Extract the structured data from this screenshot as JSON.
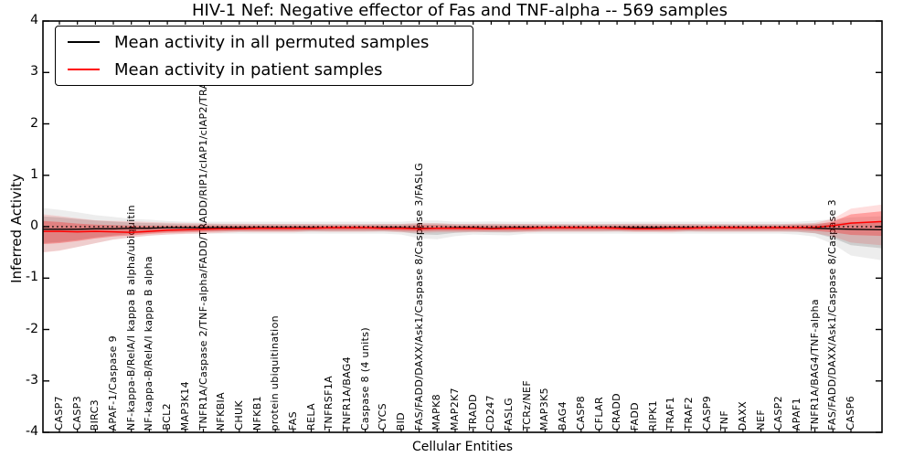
{
  "title": "HIV-1 Nef: Negative effector of Fas and TNF-alpha -- 569 samples",
  "axes": {
    "ylabel": "Inferred Activity",
    "xlabel": "Cellular Entities",
    "ytick_labels": [
      "4",
      "3",
      "2",
      "1",
      "0",
      "-1",
      "-2",
      "-3",
      "-4"
    ]
  },
  "legend": {
    "items": [
      {
        "label": "Mean activity in all permuted samples",
        "color": "#000000"
      },
      {
        "label": "Mean activity in patient samples",
        "color": "#ff0000"
      }
    ]
  },
  "colors": {
    "permuted_line": "#000000",
    "patient_line": "#ff0000",
    "permuted_band": "rgba(0,0,0,0.13)",
    "permuted_band_outer": "rgba(0,0,0,0.07)",
    "patient_band": "rgba(255,0,0,0.28)",
    "patient_band_outer": "rgba(255,0,0,0.13)",
    "zero_line": "#000000"
  },
  "chart_data": {
    "type": "line",
    "title": "HIV-1 Nef: Negative effector of Fas and TNF-alpha -- 569 samples",
    "xlabel": "Cellular Entities",
    "ylabel": "Inferred Activity",
    "ylim": [
      -4,
      4
    ],
    "yticks": [
      4,
      3,
      2,
      1,
      0,
      -1,
      -2,
      -3,
      -4
    ],
    "grid": false,
    "zero_reference_line": {
      "value": 0,
      "style": "dotted",
      "color": "#000000"
    },
    "legend_position": "upper left",
    "note": "Mean lines hover near 0 with shaded std bands; bands flare wide at both plot edges and bulge near FAS/FADD complexes. Long tick labels extend vertically into the plot; label 9's middle is hidden behind the legend box and its TRAF2 tail overlaps the title.",
    "categories": [
      "CASP7",
      "CASP3",
      "BIRC3",
      "APAF-1/Caspase 9",
      "NF-kappa-B/RelA/I kappa B alpha/ubiquitin",
      "NF-kappa-B/RelA/I kappa B alpha",
      "BCL2",
      "MAP3K14",
      "TNFR1A/Caspase 2/TNF-alpha/FADD/TRADD/RIP1/cIAP1/cIAP2/TRAF1/TRAF2",
      "NFKBIA",
      "CHUK",
      "NFKB1",
      "protein ubiquitination",
      "FAS",
      "RELA",
      "TNFRSF1A",
      "TNFR1A/BAG4",
      "Caspase 8 (4 units)",
      "CYCS",
      "BID",
      "FAS/FADD/DAXX/Ask1/Caspase 8/Caspase 3/FASLG",
      "MAPK8",
      "MAP2K7",
      "TRADD",
      "CD247",
      "FASLG",
      "TCRz/NEF",
      "MAP3K5",
      "BAG4",
      "CASP8",
      "CFLAR",
      "CRADD",
      "FADD",
      "RIPK1",
      "TRAF1",
      "TRAF2",
      "CASP9",
      "TNF",
      "DAXX",
      "NEF",
      "CASP2",
      "APAF1",
      "TNFR1A/BAG4/TNF-alpha",
      "FAS/FADD/DAXX/Ask1/Caspase 8/Caspase 3",
      "CASP6"
    ],
    "series": [
      {
        "name": "Mean activity in all permuted samples",
        "role": "mean_line",
        "color": "#000000",
        "edge_left": -0.05,
        "edge_right": -0.06,
        "values": [
          -0.05,
          -0.05,
          -0.04,
          -0.04,
          -0.03,
          -0.03,
          -0.02,
          -0.02,
          -0.02,
          -0.02,
          -0.02,
          -0.02,
          -0.02,
          -0.02,
          -0.02,
          -0.02,
          -0.02,
          -0.02,
          -0.02,
          -0.02,
          -0.03,
          -0.03,
          -0.02,
          -0.02,
          -0.03,
          -0.02,
          -0.02,
          -0.02,
          -0.02,
          -0.02,
          -0.02,
          -0.02,
          -0.02,
          -0.02,
          -0.02,
          -0.02,
          -0.02,
          -0.02,
          -0.02,
          -0.02,
          -0.02,
          -0.02,
          -0.03,
          -0.04,
          -0.05
        ]
      },
      {
        "name": "Mean activity in patient samples",
        "role": "mean_line",
        "color": "#ff0000",
        "edge_left": -0.09,
        "edge_right": 0.1,
        "values": [
          -0.09,
          -0.1,
          -0.09,
          -0.1,
          -0.11,
          -0.09,
          -0.07,
          -0.06,
          -0.05,
          -0.04,
          -0.04,
          -0.03,
          -0.03,
          -0.03,
          -0.03,
          -0.02,
          -0.02,
          -0.02,
          -0.03,
          -0.03,
          -0.04,
          -0.03,
          -0.03,
          -0.03,
          -0.04,
          -0.03,
          -0.03,
          -0.02,
          -0.02,
          -0.02,
          -0.02,
          -0.03,
          -0.04,
          -0.04,
          -0.03,
          -0.03,
          -0.02,
          -0.02,
          -0.02,
          -0.02,
          -0.02,
          -0.02,
          -0.01,
          0.02,
          0.07
        ]
      },
      {
        "name": "permuted std band upper",
        "role": "band_upper",
        "band": "permuted",
        "edge_left": 0.2,
        "edge_right": 0.1,
        "values": [
          0.18,
          0.15,
          0.12,
          0.1,
          0.08,
          0.07,
          0.06,
          0.05,
          0.05,
          0.05,
          0.05,
          0.05,
          0.05,
          0.05,
          0.05,
          0.05,
          0.05,
          0.05,
          0.05,
          0.05,
          0.06,
          0.06,
          0.05,
          0.05,
          0.05,
          0.05,
          0.05,
          0.05,
          0.05,
          0.05,
          0.05,
          0.05,
          0.05,
          0.05,
          0.05,
          0.05,
          0.05,
          0.05,
          0.05,
          0.05,
          0.05,
          0.05,
          0.06,
          0.07,
          0.09
        ]
      },
      {
        "name": "permuted std band lower",
        "role": "band_lower",
        "band": "permuted",
        "edge_left": -0.32,
        "edge_right": -0.42,
        "values": [
          -0.3,
          -0.26,
          -0.21,
          -0.17,
          -0.14,
          -0.12,
          -0.1,
          -0.09,
          -0.09,
          -0.09,
          -0.09,
          -0.09,
          -0.09,
          -0.09,
          -0.09,
          -0.09,
          -0.09,
          -0.09,
          -0.09,
          -0.1,
          -0.15,
          -0.16,
          -0.12,
          -0.1,
          -0.11,
          -0.11,
          -0.09,
          -0.09,
          -0.09,
          -0.09,
          -0.09,
          -0.09,
          -0.09,
          -0.09,
          -0.09,
          -0.09,
          -0.09,
          -0.09,
          -0.09,
          -0.09,
          -0.09,
          -0.1,
          -0.13,
          -0.22,
          -0.36
        ]
      },
      {
        "name": "patient std band upper",
        "role": "band_upper",
        "band": "patient",
        "edge_left": 0.11,
        "edge_right": 0.3,
        "values": [
          0.09,
          0.06,
          0.04,
          0.03,
          0.02,
          0.02,
          0.02,
          0.02,
          0.02,
          0.02,
          0.02,
          0.02,
          0.02,
          0.02,
          0.02,
          0.02,
          0.02,
          0.02,
          0.02,
          0.02,
          0.03,
          0.03,
          0.02,
          0.02,
          0.02,
          0.02,
          0.02,
          0.02,
          0.02,
          0.02,
          0.02,
          0.02,
          0.02,
          0.02,
          0.02,
          0.02,
          0.02,
          0.02,
          0.02,
          0.02,
          0.02,
          0.03,
          0.04,
          0.1,
          0.24
        ]
      },
      {
        "name": "patient std band lower",
        "role": "band_lower",
        "band": "patient",
        "edge_left": -0.34,
        "edge_right": -0.18,
        "values": [
          -0.32,
          -0.28,
          -0.23,
          -0.19,
          -0.17,
          -0.14,
          -0.12,
          -0.11,
          -0.1,
          -0.09,
          -0.08,
          -0.08,
          -0.08,
          -0.08,
          -0.07,
          -0.07,
          -0.07,
          -0.07,
          -0.07,
          -0.08,
          -0.09,
          -0.08,
          -0.08,
          -0.08,
          -0.08,
          -0.08,
          -0.08,
          -0.07,
          -0.07,
          -0.07,
          -0.07,
          -0.07,
          -0.08,
          -0.08,
          -0.08,
          -0.07,
          -0.07,
          -0.07,
          -0.07,
          -0.07,
          -0.07,
          -0.07,
          -0.08,
          -0.11,
          -0.16
        ]
      }
    ],
    "outer_band_scale": 1.65
  }
}
